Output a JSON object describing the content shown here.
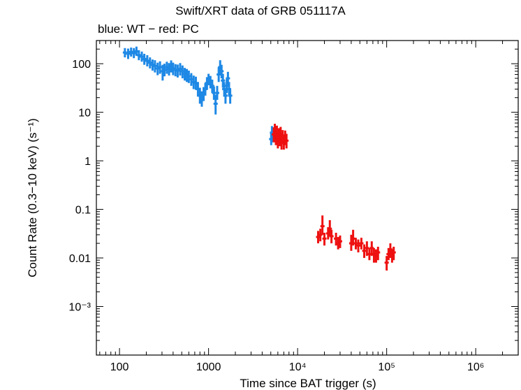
{
  "chart_data": {
    "type": "scatter",
    "title": "Swift/XRT data of GRB 051117A",
    "subtitle": "blue: WT − red: PC",
    "xlabel": "Time since BAT trigger (s)",
    "ylabel": "Count Rate (0.3−10 keV) (s⁻¹)",
    "xscale": "log",
    "yscale": "log",
    "xlim": [
      55,
      3000000
    ],
    "ylim": [
      0.0001,
      300
    ],
    "x_ticks": [
      {
        "value": 100,
        "label": "100"
      },
      {
        "value": 1000,
        "label": "1000"
      },
      {
        "value": 10000,
        "label": "10⁴"
      },
      {
        "value": 100000,
        "label": "10⁵"
      },
      {
        "value": 1000000,
        "label": "10⁶"
      }
    ],
    "y_ticks": [
      {
        "value": 0.001,
        "label": "10⁻³"
      },
      {
        "value": 0.01,
        "label": "0.01"
      },
      {
        "value": 0.1,
        "label": "0.1"
      },
      {
        "value": 1,
        "label": "1"
      },
      {
        "value": 10,
        "label": "10"
      },
      {
        "value": 100,
        "label": "100"
      }
    ],
    "series": [
      {
        "name": "WT",
        "color": "#1e88e5",
        "points": [
          [
            115,
            170,
            135,
            210
          ],
          [
            125,
            160,
            125,
            205
          ],
          [
            135,
            175,
            140,
            215
          ],
          [
            145,
            165,
            130,
            210
          ],
          [
            155,
            180,
            145,
            225
          ],
          [
            165,
            150,
            118,
            190
          ],
          [
            178,
            140,
            110,
            178
          ],
          [
            190,
            125,
            95,
            160
          ],
          [
            205,
            115,
            88,
            150
          ],
          [
            220,
            105,
            80,
            135
          ],
          [
            235,
            95,
            72,
            122
          ],
          [
            250,
            90,
            66,
            118
          ],
          [
            268,
            80,
            58,
            105
          ],
          [
            285,
            85,
            62,
            112
          ],
          [
            305,
            70,
            45,
            95
          ],
          [
            320,
            75,
            55,
            100
          ],
          [
            340,
            85,
            62,
            110
          ],
          [
            360,
            78,
            57,
            103
          ],
          [
            380,
            90,
            66,
            117
          ],
          [
            400,
            80,
            58,
            105
          ],
          [
            425,
            75,
            55,
            98
          ],
          [
            450,
            72,
            52,
            96
          ],
          [
            480,
            78,
            57,
            103
          ],
          [
            510,
            70,
            50,
            92
          ],
          [
            540,
            62,
            45,
            82
          ],
          [
            570,
            58,
            42,
            78
          ],
          [
            600,
            55,
            40,
            72
          ],
          [
            640,
            48,
            35,
            64
          ],
          [
            680,
            42,
            30,
            57
          ],
          [
            720,
            40,
            29,
            54
          ],
          [
            760,
            30,
            21,
            42
          ],
          [
            800,
            22,
            15,
            32
          ],
          [
            840,
            19,
            13,
            27
          ],
          [
            880,
            24,
            17,
            33
          ],
          [
            920,
            30,
            22,
            40
          ],
          [
            960,
            40,
            29,
            53
          ],
          [
            1000,
            48,
            36,
            62
          ],
          [
            1050,
            42,
            31,
            56
          ],
          [
            1100,
            35,
            25,
            47
          ],
          [
            1150,
            25,
            18,
            34
          ],
          [
            1200,
            15,
            9,
            23
          ],
          [
            1250,
            25,
            18,
            35
          ],
          [
            1300,
            60,
            42,
            85
          ],
          [
            1350,
            85,
            60,
            118
          ],
          [
            1400,
            70,
            50,
            95
          ],
          [
            1450,
            45,
            32,
            62
          ],
          [
            1500,
            30,
            21,
            42
          ],
          [
            1550,
            22,
            15,
            30
          ],
          [
            1600,
            35,
            25,
            48
          ],
          [
            1650,
            50,
            36,
            68
          ],
          [
            1700,
            30,
            21,
            42
          ],
          [
            1750,
            22,
            15,
            30
          ],
          [
            5050,
            2.8,
            2.1,
            3.8
          ],
          [
            5150,
            3.8,
            2.9,
            5.2
          ],
          [
            5250,
            3.2,
            2.4,
            4.3
          ]
        ]
      },
      {
        "name": "PC",
        "color": "#ee1111",
        "points": [
          [
            5400,
            3.5,
            2.4,
            4.9
          ],
          [
            5550,
            4.2,
            3.0,
            5.8
          ],
          [
            5700,
            3.0,
            2.1,
            4.2
          ],
          [
            5850,
            3.8,
            2.7,
            5.3
          ],
          [
            6000,
            2.6,
            1.8,
            3.7
          ],
          [
            6150,
            3.4,
            2.4,
            4.7
          ],
          [
            6300,
            2.9,
            2.0,
            4.1
          ],
          [
            6450,
            3.6,
            2.5,
            5.0
          ],
          [
            6600,
            2.4,
            1.7,
            3.4
          ],
          [
            6800,
            3.1,
            2.2,
            4.3
          ],
          [
            7000,
            2.5,
            1.7,
            3.5
          ],
          [
            7250,
            3.0,
            2.1,
            4.2
          ],
          [
            7500,
            2.6,
            1.8,
            3.6
          ],
          [
            17000,
            0.027,
            0.02,
            0.036
          ],
          [
            18000,
            0.03,
            0.022,
            0.04
          ],
          [
            19000,
            0.045,
            0.03,
            0.075
          ],
          [
            20000,
            0.025,
            0.018,
            0.033
          ],
          [
            22000,
            0.032,
            0.024,
            0.043
          ],
          [
            23000,
            0.04,
            0.028,
            0.06
          ],
          [
            24000,
            0.028,
            0.02,
            0.038
          ],
          [
            27000,
            0.025,
            0.018,
            0.033
          ],
          [
            28500,
            0.02,
            0.015,
            0.027
          ],
          [
            30000,
            0.022,
            0.016,
            0.029
          ],
          [
            40000,
            0.02,
            0.014,
            0.03
          ],
          [
            42000,
            0.025,
            0.018,
            0.038
          ],
          [
            45000,
            0.02,
            0.015,
            0.026
          ],
          [
            48000,
            0.018,
            0.013,
            0.024
          ],
          [
            52000,
            0.02,
            0.015,
            0.026
          ],
          [
            56000,
            0.014,
            0.01,
            0.019
          ],
          [
            60000,
            0.016,
            0.011,
            0.022
          ],
          [
            64000,
            0.012,
            0.009,
            0.016
          ],
          [
            68000,
            0.016,
            0.011,
            0.022
          ],
          [
            72000,
            0.012,
            0.008,
            0.016
          ],
          [
            76000,
            0.011,
            0.008,
            0.015
          ],
          [
            80000,
            0.013,
            0.009,
            0.017
          ],
          [
            100000,
            0.008,
            0.0055,
            0.011
          ],
          [
            105000,
            0.012,
            0.009,
            0.016
          ],
          [
            110000,
            0.015,
            0.01,
            0.02
          ],
          [
            115000,
            0.011,
            0.008,
            0.015
          ],
          [
            120000,
            0.013,
            0.009,
            0.017
          ]
        ]
      }
    ]
  }
}
